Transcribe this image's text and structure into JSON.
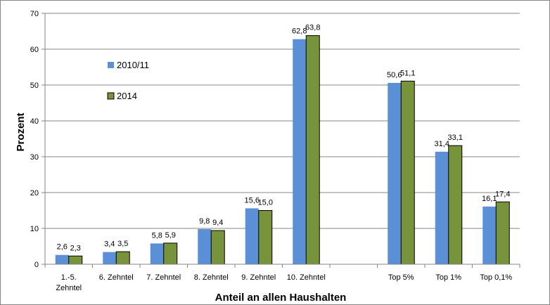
{
  "chart_data": {
    "type": "bar",
    "categories": [
      "1.-5. Zehntel",
      "6. Zehntel",
      "7. Zehntel",
      "8. Zehntel",
      "9. Zehntel",
      "10. Zehntel",
      "",
      "Top 5%",
      "Top 1%",
      "Top 0,1%"
    ],
    "category_lines": [
      [
        "1.-5.",
        "Zehntel"
      ],
      [
        "6. Zehntel"
      ],
      [
        "7. Zehntel"
      ],
      [
        "8. Zehntel"
      ],
      [
        "9. Zehntel"
      ],
      [
        "10. Zehntel"
      ],
      [
        ""
      ],
      [
        "Top 5%"
      ],
      [
        "Top 1%"
      ],
      [
        "Top 0,1%"
      ]
    ],
    "series": [
      {
        "name": "2010/11",
        "values": [
          2.6,
          3.4,
          5.8,
          9.8,
          15.6,
          62.8,
          null,
          50.6,
          31.4,
          16.1
        ],
        "labels": [
          "2,6",
          "3,4",
          "5,8",
          "9,8",
          "15,6",
          "62,8",
          "",
          "50,6",
          "31,4",
          "16,1"
        ],
        "color": "#5b8fd6"
      },
      {
        "name": "2014",
        "values": [
          2.3,
          3.5,
          5.9,
          9.4,
          15.0,
          63.8,
          null,
          51.1,
          33.1,
          17.4
        ],
        "labels": [
          "2,3",
          "3,5",
          "5,9",
          "9,4",
          "15,0",
          "63,8",
          "",
          "51,1",
          "33,1",
          "17,4"
        ],
        "color": "#77933c"
      }
    ],
    "xlabel": "Anteil an allen Haushalten",
    "ylabel": "Prozent",
    "ylim": [
      0,
      70
    ],
    "yticks": [
      0,
      10,
      20,
      30,
      40,
      50,
      60,
      70
    ],
    "grid": true,
    "legend_position": "top-left"
  }
}
